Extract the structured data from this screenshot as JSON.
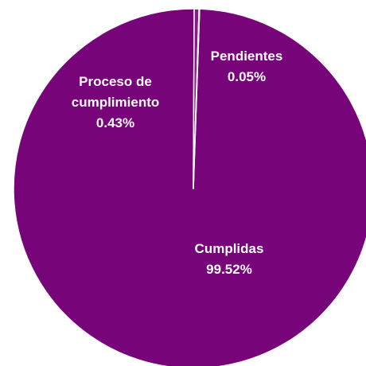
{
  "chart_data": {
    "type": "pie",
    "categories": [
      "Cumplidas",
      "Proceso de cumplimiento",
      "Pendientes"
    ],
    "values": [
      99.52,
      0.43,
      0.05
    ],
    "value_labels": [
      "99.52%",
      "0.43%",
      "0.05%"
    ],
    "colors": [
      "#780479",
      "#8a1a8c",
      "#c0504d"
    ]
  }
}
